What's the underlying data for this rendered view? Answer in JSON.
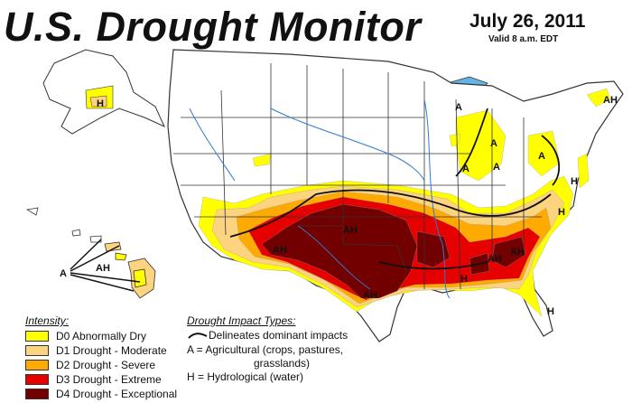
{
  "header": {
    "title": "U.S. Drought Monitor",
    "date": "July 26, 2011",
    "valid": "Valid 8 a.m. EDT"
  },
  "legend": {
    "intensity_title": "Intensity:",
    "items": [
      {
        "label": "D0 Abnormally Dry",
        "color": "#ffff00"
      },
      {
        "label": "D1 Drought - Moderate",
        "color": "#fcd37f"
      },
      {
        "label": "D2 Drought - Severe",
        "color": "#ffaa00"
      },
      {
        "label": "D3 Drought - Extreme",
        "color": "#e60000"
      },
      {
        "label": "D4 Drought - Exceptional",
        "color": "#730000"
      }
    ]
  },
  "impacts": {
    "title": "Drought Impact Types:",
    "line_label": "Delineates dominant impacts",
    "ag_line1": "A = Agricultural (crops, pastures,",
    "ag_line2": "grasslands)",
    "hydro": "H = Hydrological (water)"
  },
  "map_labels": {
    "alaska": "H",
    "hawaii_a": "A",
    "hawaii_ah": "AH",
    "sw_ah": "AH",
    "south_ah": "AH",
    "texas_ah": "AH",
    "se_ah": "AH",
    "se_ah2": "AH",
    "gulf_h": "H",
    "florida_h": "H",
    "nc_h": "H",
    "midatl_h": "H",
    "northeast_a": "A",
    "mi_a": "A",
    "ohio_a": "A",
    "il_a": "A",
    "wi_a": "A",
    "ne_ah": "AH"
  },
  "colors": {
    "water": "#64b4e6",
    "land": "#ffffff",
    "state_line": "#333333",
    "county_line": "#9a9a9a",
    "river": "#2d7bd1"
  }
}
